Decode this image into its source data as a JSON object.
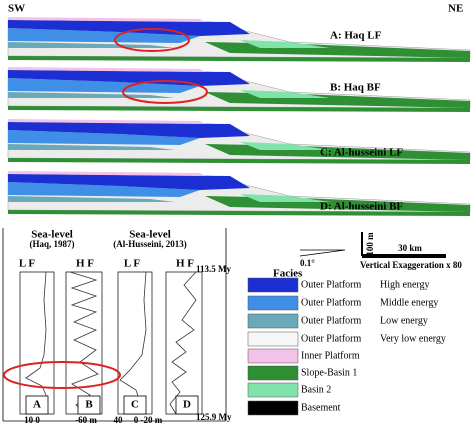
{
  "header": {
    "left": "SW",
    "right": "NE"
  },
  "sections": [
    {
      "label": "A: Haq LF"
    },
    {
      "label": "B: Haq BF"
    },
    {
      "label": "C: Al-husseini LF"
    },
    {
      "label": "D: Al-husseini BF"
    }
  ],
  "sea_level": [
    {
      "title": "Sea-level",
      "source": "(Haq, 1987)"
    },
    {
      "title": "Sea-level",
      "source": "(Al-Husseini, 2013)"
    }
  ],
  "curve_labels": [
    "L F",
    "H F",
    "L F",
    "H F"
  ],
  "ages": {
    "top": "113.5 My",
    "bottom": "125.9 My"
  },
  "panels": [
    "A",
    "B",
    "C",
    "D"
  ],
  "axis_labels": [
    "10 0",
    "-60 m",
    "40",
    "0 -20 m"
  ],
  "scale": {
    "vertical": "100 m",
    "horizontal": "30 km",
    "angle": "0.1°",
    "exaggeration": "Vertical Exaggeration x 80"
  },
  "legend": {
    "title": "Facies",
    "items": [
      {
        "name": "Outer Platform",
        "detail": "High energy",
        "color": "#1b2fd2"
      },
      {
        "name": "Outer Platform",
        "detail": "Middle energy",
        "color": "#3f8fe6"
      },
      {
        "name": "Outer Platform",
        "detail": "Low energy",
        "color": "#6aa9b8"
      },
      {
        "name": "Outer Platform",
        "detail": "Very low energy",
        "color": "#f6f6f6"
      },
      {
        "name": "Inner Platform",
        "color": "#f2c2ea"
      },
      {
        "name": "Slope-Basin 1",
        "color": "#2f8f35"
      },
      {
        "name": "Basin 2",
        "color": "#7fe3aa"
      },
      {
        "name": "Basement",
        "color": "#000000"
      }
    ]
  }
}
